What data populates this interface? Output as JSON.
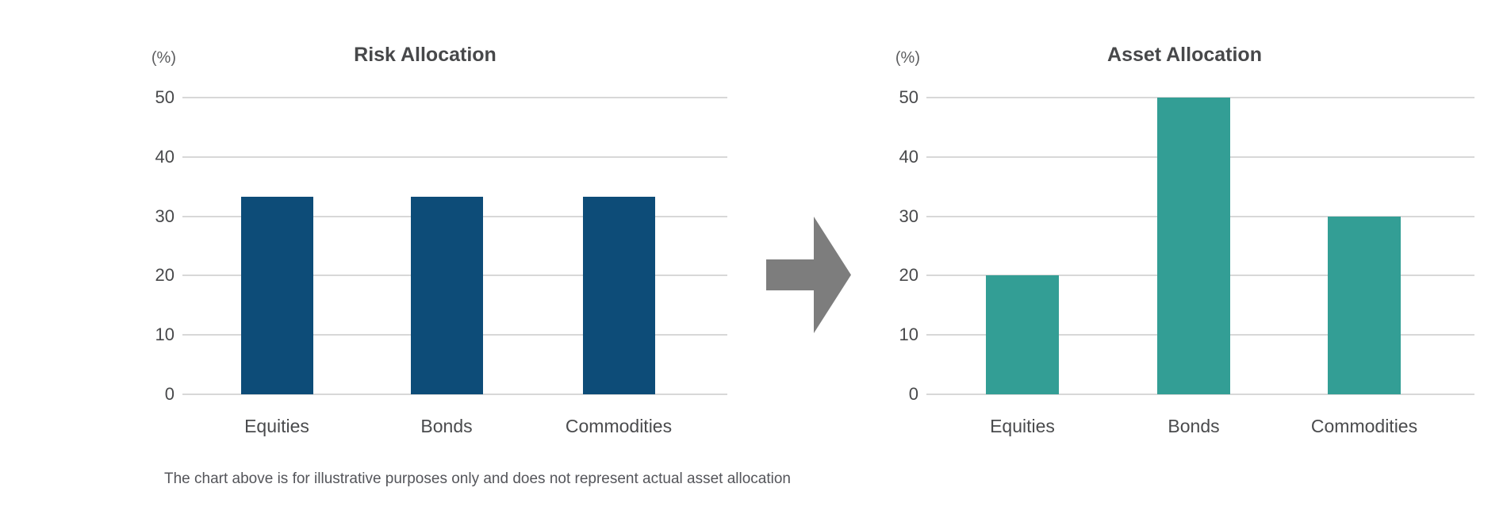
{
  "page": {
    "footnote": "The chart above is for illustrative purposes only and does not represent actual asset allocation"
  },
  "arrow": {
    "direction": "right",
    "color": "#7d7d7d"
  },
  "chart_data": [
    {
      "type": "bar",
      "title": "Risk Allocation",
      "ylabel": "(%)",
      "categories": [
        "Equities",
        "Bonds",
        "Commodities"
      ],
      "values": [
        33.3,
        33.3,
        33.3
      ],
      "bar_color": "#0d4c78",
      "ylim": [
        0,
        50
      ],
      "yticks": [
        0,
        10,
        20,
        30,
        40,
        50
      ],
      "grid": true,
      "grid_color": "#d8d8d8",
      "legend": "none",
      "xlabel": ""
    },
    {
      "type": "bar",
      "title": "Asset Allocation",
      "ylabel": "(%)",
      "categories": [
        "Equities",
        "Bonds",
        "Commodities"
      ],
      "values": [
        20,
        50,
        30
      ],
      "bar_color": "#339e95",
      "ylim": [
        0,
        50
      ],
      "yticks": [
        0,
        10,
        20,
        30,
        40,
        50
      ],
      "grid": true,
      "grid_color": "#d8d8d8",
      "legend": "none",
      "xlabel": ""
    }
  ]
}
